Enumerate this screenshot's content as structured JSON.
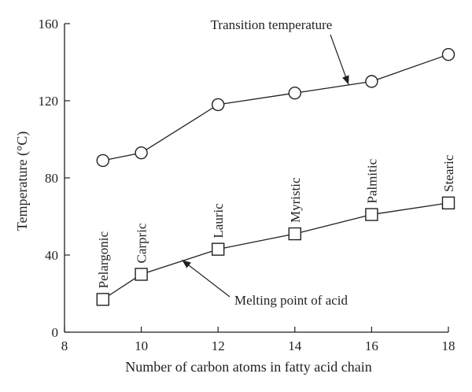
{
  "chart_data": {
    "type": "line",
    "xlabel": "Number of carbon atoms in fatty acid chain",
    "ylabel": "Temperature (°C)",
    "xlim": [
      8,
      18
    ],
    "ylim": [
      0,
      160
    ],
    "xticks": [
      8,
      10,
      12,
      14,
      16,
      18
    ],
    "yticks": [
      0,
      40,
      80,
      120,
      160
    ],
    "series": [
      {
        "marker": "circle",
        "points": [
          [
            9,
            89
          ],
          [
            10,
            93
          ],
          [
            12,
            118
          ],
          [
            14,
            124
          ],
          [
            16,
            130
          ],
          [
            18,
            144
          ]
        ]
      },
      {
        "marker": "square",
        "points": [
          [
            9,
            17
          ],
          [
            10,
            30
          ],
          [
            12,
            43
          ],
          [
            14,
            51
          ],
          [
            16,
            61
          ],
          [
            18,
            67
          ]
        ],
        "point_labels": [
          "Pelargonic",
          "Carpric",
          "Lauric",
          "Myristic",
          "Palmitic",
          "Stearic"
        ]
      }
    ],
    "annotations": [
      {
        "text": "Transition temperature",
        "target": [
          15.4,
          128
        ]
      },
      {
        "text": "Melting point of acid",
        "target": [
          11,
          37
        ]
      }
    ]
  }
}
